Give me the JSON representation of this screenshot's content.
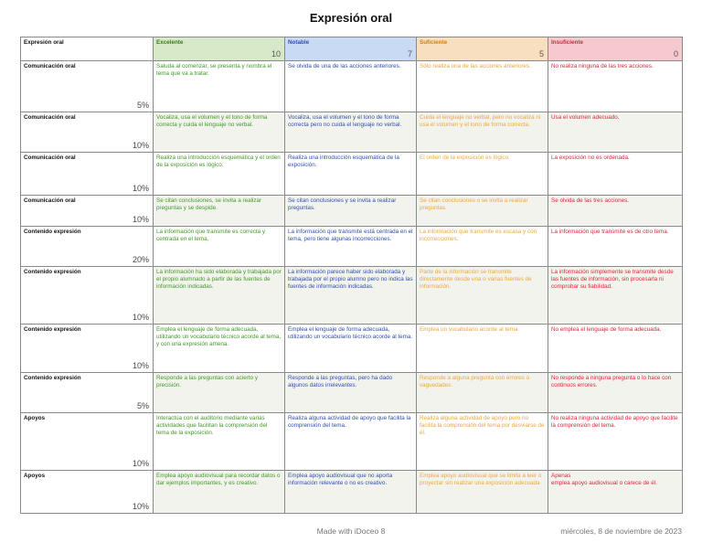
{
  "title": "Expresión oral",
  "table_title": "Expresión oral",
  "levels": [
    {
      "name": "Excelente",
      "points": "10"
    },
    {
      "name": "Notable",
      "points": "7"
    },
    {
      "name": "Suficiente",
      "points": "5"
    },
    {
      "name": "Insuficiente",
      "points": "0"
    }
  ],
  "rows": [
    {
      "criterion": "Comunicación oral",
      "weight": "5%",
      "cells": [
        "Saluda al comenzar, se presenta y nombra el tema que va a tratar.",
        "Se olvida de una de las acciones anteriores.",
        "Sólo realiza una de las acciones anteriores.",
        "No realiza ninguna de las tres acciones."
      ]
    },
    {
      "criterion": "Comunicación oral",
      "weight": "10%",
      "cells": [
        "Vocaliza, usa el volumen y el tono de forma correcta y cuida el lenguaje no verbal.",
        "Vocaliza, usa el volumen y el tono de forma correcta pero no cuida el lenguaje no verbal.",
        "Cuida el lenguaje no verbal, pero no vocaliza ni usa el volumen y el tono de forma correcta.",
        "Usa el volumen adecuado."
      ]
    },
    {
      "criterion": "Comunicación oral",
      "weight": "10%",
      "cells": [
        "Realiza una introducción esquemática y el orden de la exposición es lógico.",
        " Realiza una introducción esquemática de la exposición.",
        "El orden de la exposición es lógico.",
        "La exposición no es ordenada."
      ]
    },
    {
      "criterion": "Comunicación oral",
      "weight": "10%",
      "cells": [
        "Se citan conclusiones, se invita a realizar preguntas y se despide.",
        "Se citan conclusiones y se invita a realizar preguntas.",
        "Se citan conclusiones o se invita a realizar preguntas.",
        "Se olvida de las tres acciones."
      ]
    },
    {
      "criterion": "Contenido expresión",
      "weight": "20%",
      "cells": [
        "La información que transmite es correcta y centrada en el tema.",
        "La información que transmite está centrada en el tema, pero tiene algunas incorrecciones.",
        "La información que transmite es escasa y con incorrecciones.",
        "La información que transmite es de otro tema."
      ]
    },
    {
      "criterion": "Contenido expresión",
      "weight": "10%",
      "cells": [
        "La información ha sido elaborada y trabajada por el propio alumnado a partir de las fuentes de información indicadas.",
        "La información parece haber sido elaborada y trabajada por el propio alumno pero no indica las fuentes de información indicadas.",
        "Parte de la información se transmite directamente desde una o varias fuentes de información.",
        "La información simplemente se transmite desde las fuentes de información, sin procesarla ni comprobar su fiabilidad."
      ]
    },
    {
      "criterion": "Contenido expresión",
      "weight": "10%",
      "cells": [
        "Emplea el lenguaje de forma adecuada, utilizando un vocabulario técnico acorde al tema, y con una expresión amena.",
        "Emplea el lenguaje de forma adecuada, utilizando un vocabulario técnico acorde al tema.",
        "Emplea un vocabulario  acorde al tema",
        "No emplea el lenguaje de forma adecuada."
      ]
    },
    {
      "criterion": "Contenido expresión",
      "weight": "5%",
      "cells": [
        "Responde a las preguntas con acierto y precisión.",
        "Responde a las preguntas, pero ha dado algunos datos irrelevantes.",
        "Responde a alguna pregunta con errores o vaguedades.",
        "No responde a ninguna pregunta o lo hace con continuos errores."
      ]
    },
    {
      "criterion": "Apoyos",
      "weight": "10%",
      "cells": [
        "Interactúa con el auditorio mediante varias actividades que facilitan la comprensión del tema de la exposición.",
        "Realiza alguna actividad de apoyo que facilita la comprensión del tema.",
        "Realiza alguna actividad de apoyo pero no facilita la comprensión del tema por desviarse de él.",
        "No realiza ninguna actividad de apoyo que facilite la comprensión del tema."
      ]
    },
    {
      "criterion": "Apoyos",
      "weight": "10%",
      "cells": [
        "Emplea apoyo audiovisual para recordar datos o dar ejemplos importantes, y es creativo.",
        "Emplea apoyo audiovisual que no aporta información relevante o no es creativo.",
        "Emplea apoyo audiovisual que se limita a leer o proyectar sin realizar una exposición adecuada",
        "Apenas\nemplea apoyo audiovisual o carece de él."
      ]
    }
  ],
  "footer": {
    "made_with": "Made with iDoceo 8",
    "date": "miércoles, 8 de noviembre de 2023"
  }
}
